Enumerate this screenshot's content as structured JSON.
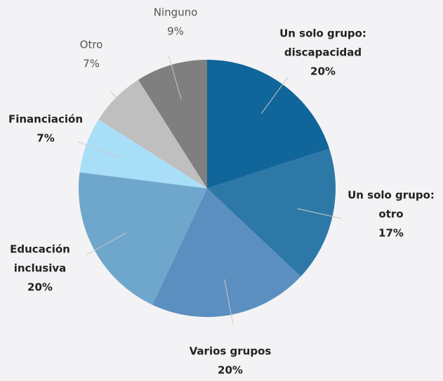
{
  "chart_data": {
    "type": "pie",
    "categories": [
      [
        "Un solo grupo:",
        "discapacidad"
      ],
      [
        "Un solo grupo:",
        "otro"
      ],
      [
        "Varios grupos"
      ],
      [
        "Educación",
        "inclusiva"
      ],
      [
        "Financiación"
      ],
      [
        "Otro"
      ],
      [
        "Ninguno"
      ]
    ],
    "values": [
      20,
      17,
      20,
      20,
      7,
      7,
      9
    ],
    "value_labels": [
      "20%",
      "17%",
      "20%",
      "20%",
      "7%",
      "7%",
      "9%"
    ],
    "colors": [
      "#10659a",
      "#2e78a8",
      "#5a8fbf",
      "#6fa6cc",
      "#a9def8",
      "#bfbfbf",
      "#7f7f7f"
    ]
  }
}
